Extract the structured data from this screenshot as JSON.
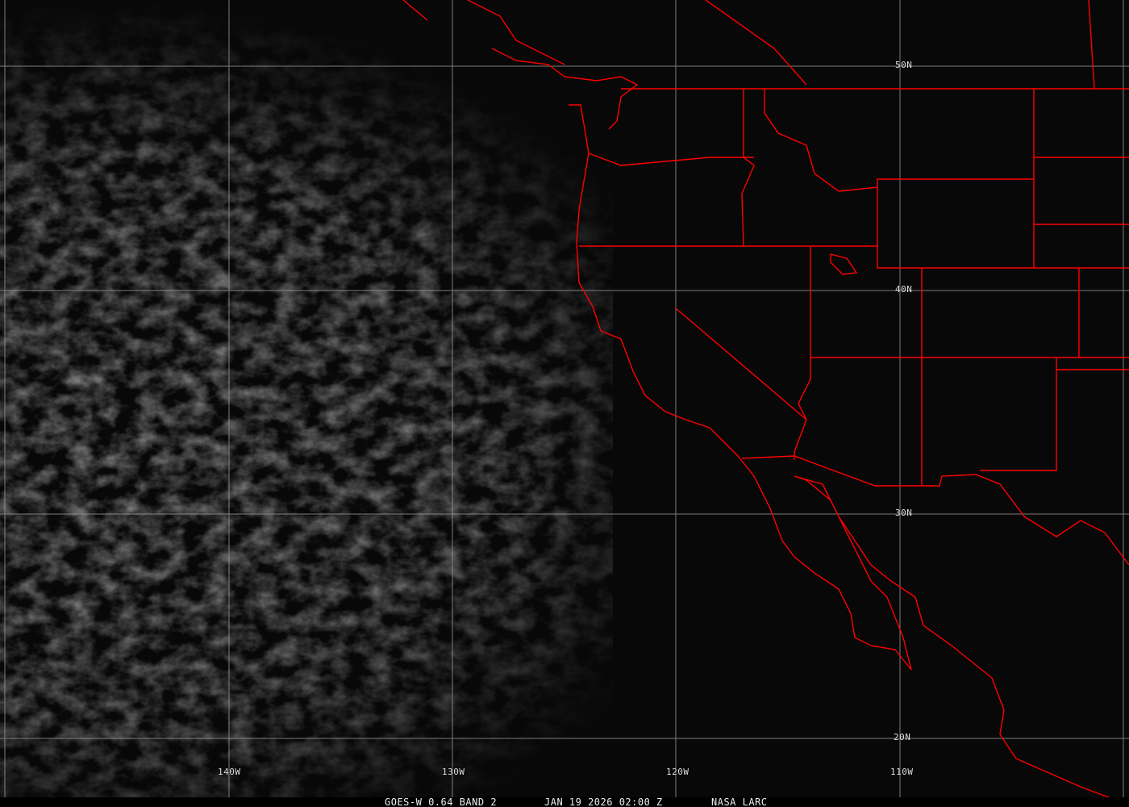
{
  "caption": {
    "product": "GOES-W 0.64 BAND 2",
    "datetime": "JAN 19 2026 02:00 Z",
    "credit": "NASA LARC"
  },
  "grid": {
    "longitude_labels": [
      "140W",
      "130W",
      "120W",
      "110W"
    ],
    "latitude_labels": [
      "50N",
      "40N",
      "30N",
      "20N"
    ]
  },
  "colors": {
    "borders": "#ff0000",
    "grid": "#9a9a9a",
    "background": "#080808"
  }
}
